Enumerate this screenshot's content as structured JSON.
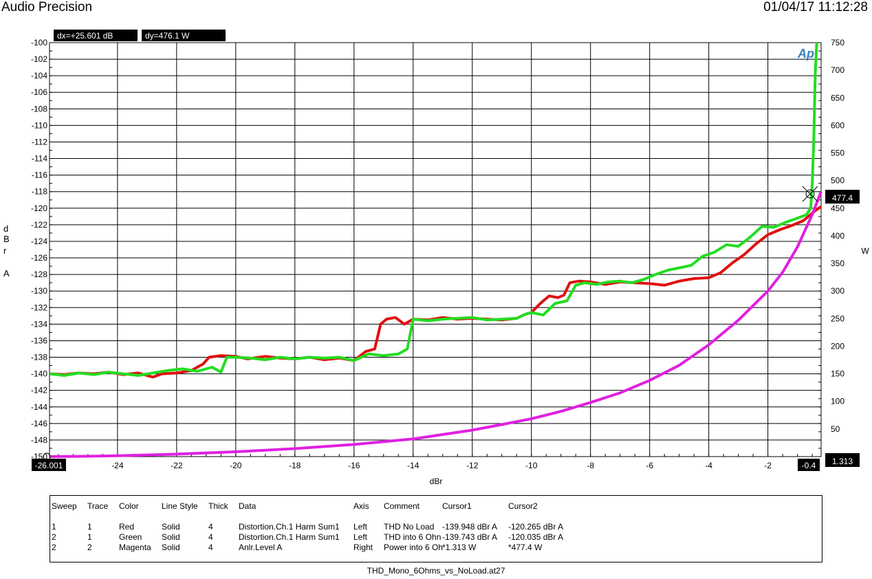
{
  "header": {
    "app_title": "Audio Precision",
    "timestamp": "01/04/17 11:12:28"
  },
  "cursor_readout": {
    "dx": "dx=+25.601  dB",
    "dy": "dy=476.1   W",
    "x1_label": "-26.001",
    "x2_label": "-0.4",
    "right_value_1": "1.313",
    "right_value_2": "477.4"
  },
  "chart_data": {
    "type": "line",
    "xlabel": "dBr",
    "ylabel": "dBr A",
    "y2label": "W",
    "xlim": [
      -26.3,
      -0.2
    ],
    "ylim": [
      -150,
      -100
    ],
    "y2lim": [
      0,
      750
    ],
    "grid": true,
    "x_ticks": [
      "-24",
      "-22",
      "-20",
      "-18",
      "-16",
      "-14",
      "-12",
      "-10",
      "-8",
      "-6",
      "-4",
      "-2"
    ],
    "x_tick_values": [
      -24,
      -22,
      -20,
      -18,
      -16,
      -14,
      -12,
      -10,
      -8,
      -6,
      -4,
      -2
    ],
    "y_ticks": [
      "-100",
      "-102",
      "-104",
      "-106",
      "-108",
      "-110",
      "-112",
      "-114",
      "-116",
      "-118",
      "-120",
      "-122",
      "-124",
      "-126",
      "-128",
      "-130",
      "-132",
      "-134",
      "-136",
      "-138",
      "-140",
      "-142",
      "-144",
      "-146",
      "-148",
      "-150"
    ],
    "y2_ticks": [
      "750",
      "700",
      "650",
      "600",
      "550",
      "500",
      "450",
      "400",
      "350",
      "300",
      "250",
      "200",
      "150",
      "100",
      "50"
    ],
    "series": [
      {
        "color": "#e01010",
        "axis": "left",
        "x": [
          -26.3,
          -25.8,
          -25.3,
          -24.8,
          -24.3,
          -23.8,
          -23.3,
          -22.8,
          -22.5,
          -22.0,
          -21.5,
          -21.1,
          -20.9,
          -20.5,
          -20.0,
          -19.6,
          -19.0,
          -18.5,
          -18.0,
          -17.5,
          -17.0,
          -16.5,
          -16.0,
          -15.6,
          -15.3,
          -15.1,
          -14.9,
          -14.6,
          -14.3,
          -14.0,
          -13.5,
          -13.0,
          -12.5,
          -12.0,
          -11.5,
          -11.0,
          -10.5,
          -10.2,
          -10.0,
          -9.7,
          -9.4,
          -9.1,
          -8.9,
          -8.7,
          -8.4,
          -8.0,
          -7.5,
          -7.0,
          -6.5,
          -6.0,
          -5.5,
          -5.0,
          -4.5,
          -4.0,
          -3.6,
          -3.2,
          -2.8,
          -2.4,
          -2.0,
          -1.6,
          -1.2,
          -0.8,
          -0.4,
          -0.2
        ],
        "y": [
          -140.0,
          -140.1,
          -139.9,
          -140.0,
          -139.8,
          -140.1,
          -139.9,
          -140.4,
          -140.0,
          -139.9,
          -139.6,
          -138.8,
          -138.0,
          -137.8,
          -137.9,
          -138.2,
          -137.9,
          -138.1,
          -138.2,
          -138.0,
          -138.3,
          -138.1,
          -138.4,
          -137.3,
          -137.0,
          -134.0,
          -133.4,
          -133.2,
          -134.0,
          -133.4,
          -133.5,
          -133.2,
          -133.4,
          -133.3,
          -133.4,
          -133.5,
          -133.3,
          -132.8,
          -132.6,
          -131.5,
          -130.6,
          -130.8,
          -130.5,
          -129.0,
          -128.8,
          -128.9,
          -129.2,
          -128.9,
          -129.0,
          -129.1,
          -129.3,
          -128.8,
          -128.5,
          -128.4,
          -127.8,
          -126.6,
          -125.6,
          -124.3,
          -123.2,
          -122.6,
          -122.1,
          -121.5,
          -120.3,
          -119.8
        ]
      },
      {
        "color": "#22dd22",
        "axis": "left",
        "x": [
          -26.3,
          -25.8,
          -25.3,
          -24.8,
          -24.3,
          -23.8,
          -23.3,
          -22.8,
          -22.3,
          -21.8,
          -21.3,
          -20.8,
          -20.5,
          -20.3,
          -20.0,
          -19.5,
          -19.0,
          -18.5,
          -18.0,
          -17.5,
          -17.0,
          -16.5,
          -16.0,
          -15.5,
          -15.0,
          -14.5,
          -14.2,
          -14.0,
          -13.5,
          -13.0,
          -12.5,
          -12.0,
          -11.5,
          -11.0,
          -10.5,
          -10.2,
          -10.0,
          -9.6,
          -9.2,
          -8.8,
          -8.5,
          -8.2,
          -7.8,
          -7.4,
          -7.0,
          -6.6,
          -6.2,
          -5.8,
          -5.4,
          -5.0,
          -4.6,
          -4.2,
          -3.8,
          -3.4,
          -3.0,
          -2.6,
          -2.2,
          -1.8,
          -1.4,
          -1.0,
          -0.7,
          -0.55,
          -0.5,
          -0.45,
          -0.4,
          -0.35
        ],
        "y": [
          -140.0,
          -140.2,
          -139.9,
          -140.1,
          -139.8,
          -140.0,
          -140.2,
          -139.9,
          -139.6,
          -139.4,
          -139.7,
          -139.2,
          -139.8,
          -138.0,
          -138.0,
          -138.1,
          -138.3,
          -138.0,
          -138.2,
          -138.0,
          -138.1,
          -138.0,
          -138.4,
          -137.6,
          -137.8,
          -137.6,
          -137.0,
          -133.4,
          -133.6,
          -133.4,
          -133.3,
          -133.2,
          -133.5,
          -133.4,
          -133.3,
          -132.8,
          -132.6,
          -132.9,
          -131.5,
          -131.2,
          -129.3,
          -129.0,
          -129.2,
          -128.9,
          -128.8,
          -129.0,
          -128.6,
          -128.0,
          -127.5,
          -127.2,
          -126.9,
          -125.8,
          -125.3,
          -124.4,
          -124.6,
          -123.5,
          -122.2,
          -122.3,
          -121.7,
          -121.2,
          -120.8,
          -120.0,
          -117.0,
          -112.0,
          -104.0,
          -100.0
        ]
      },
      {
        "color": "#e020e0",
        "axis": "right",
        "x": [
          -26.3,
          -25.0,
          -24.0,
          -22.0,
          -20.0,
          -18.0,
          -16.0,
          -14.0,
          -12.0,
          -11.0,
          -10.0,
          -9.0,
          -8.0,
          -7.0,
          -6.0,
          -5.0,
          -4.0,
          -3.0,
          -2.0,
          -1.5,
          -1.0,
          -0.5,
          -0.2
        ],
        "y": [
          0.0,
          0.6,
          1.5,
          4.5,
          8.7,
          14.4,
          21.9,
          32.0,
          48.0,
          58.0,
          68.5,
          82.0,
          98.0,
          115.5,
          138.0,
          165.5,
          202.5,
          247.0,
          300.0,
          334.0,
          380.0,
          438.5,
          480.0
        ]
      }
    ]
  },
  "legend_table": {
    "headers": [
      "Sweep",
      "Trace",
      "Color",
      "Line Style",
      "Thick",
      "Data",
      "Axis",
      "Comment",
      "Cursor1",
      "Cursor2"
    ],
    "rows": [
      [
        "1",
        "1",
        "Red",
        "Solid",
        "4",
        "Distortion.Ch.1 Harm Sum1",
        "Left",
        "THD No Load",
        "-139.948 dBr A",
        "-120.265 dBr A"
      ],
      [
        "2",
        "1",
        "Green",
        "Solid",
        "4",
        "Distortion.Ch.1 Harm Sum1",
        "Left",
        "THD into 6 Ohn",
        "-139.743 dBr A",
        "-120.035 dBr A"
      ],
      [
        "2",
        "2",
        "Magenta",
        "Solid",
        "4",
        "Anlr.Level A",
        "Right",
        "Power into 6 Oh",
        "*1.313   W",
        "*477.4   W"
      ]
    ]
  },
  "footer": {
    "filename": "THD_Mono_6Ohms_vs_NoLoad.at27"
  },
  "logo_text": "Ap"
}
